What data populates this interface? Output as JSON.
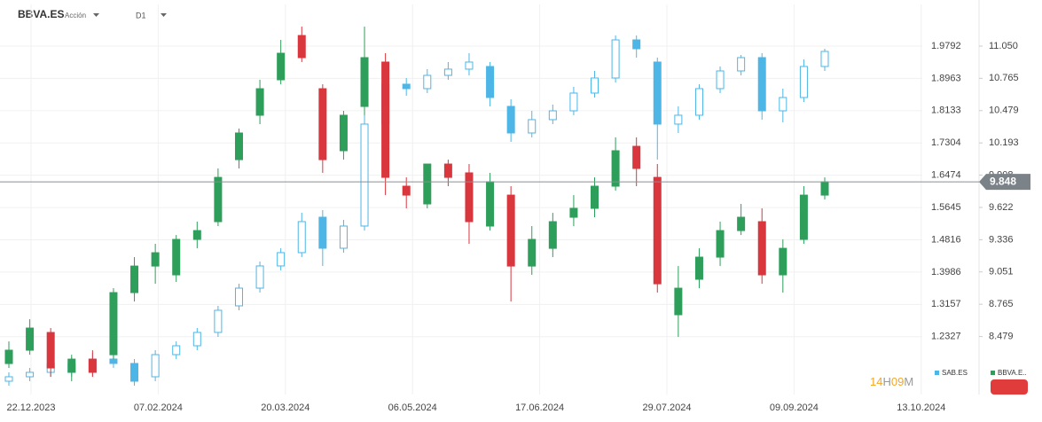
{
  "header": {
    "symbol": "BBVA.ES",
    "instrument_type": "Acción",
    "timeframe": "D1"
  },
  "timer": {
    "hours": "14",
    "hours_unit": "H",
    "minutes": "09",
    "minutes_unit": "M"
  },
  "chart_data": {
    "type": "candlestick",
    "x_axis_labels": [
      "22.12.2023",
      "07.02.2024",
      "20.03.2024",
      "06.05.2024",
      "17.06.2024",
      "29.07.2024",
      "09.09.2024",
      "13.10.2024"
    ],
    "ylim": [
      1.0955,
      2.0862
    ],
    "yticks": [
      1.9792,
      1.8963,
      1.8133,
      1.7304,
      1.6474,
      1.5645,
      1.4816,
      1.3986,
      1.3157,
      1.2327
    ],
    "y2lim": [
      8.005,
      11.419
    ],
    "y2ticks": [
      {
        "value": 11.05,
        "label": "11.050"
      },
      10.765,
      10.479,
      10.193,
      {
        "value": 9.908,
        "label": "9.908"
      },
      9.622,
      9.336,
      9.051,
      8.765,
      8.479
    ],
    "last_price": 9.848,
    "series": [
      {
        "name": "SAB.ES",
        "axis": "y",
        "color": "#4db6e6",
        "up_color": "#4db6e6",
        "down_color": "#4db6e6",
        "open": [
          1.1183,
          1.1297,
          1.1411,
          1.1639,
          1.1411,
          1.1752,
          1.1639,
          1.1297,
          1.1866,
          1.2094,
          1.2436,
          1.3119,
          1.3574,
          1.4144,
          1.4486,
          1.5396,
          1.4599,
          1.5169,
          1.7788,
          1.8813,
          1.8699,
          1.904,
          1.92,
          1.9268,
          1.8243,
          1.756,
          1.7902,
          1.8129,
          1.8585,
          1.8972,
          1.9951,
          1.9382,
          1.7788,
          1.8016,
          1.8699,
          1.9154,
          1.9496,
          1.8129,
          1.8471,
          1.9268
        ],
        "high": [
          1.1411,
          1.1525,
          1.1752,
          1.1798,
          1.1912,
          1.1912,
          1.1752,
          1.198,
          1.2208,
          1.255,
          1.3119,
          1.3688,
          1.4258,
          1.4599,
          1.551,
          1.5579,
          1.5328,
          1.8016,
          1.8972,
          1.8972,
          1.92,
          1.9382,
          1.961,
          1.9382,
          1.8425,
          1.8129,
          1.8289,
          1.8744,
          1.9154,
          2.0065,
          2.0065,
          1.9496,
          1.8243,
          1.8813,
          1.9268,
          1.9564,
          1.961,
          1.8699,
          1.945,
          1.9724
        ],
        "low": [
          1.1069,
          1.1183,
          1.1297,
          1.1297,
          1.1297,
          1.1525,
          1.1069,
          1.1183,
          1.1752,
          1.198,
          1.2322,
          1.3005,
          1.3461,
          1.403,
          1.4372,
          1.4144,
          1.4486,
          1.5055,
          1.7674,
          1.8517,
          1.8585,
          1.8927,
          1.904,
          1.8243,
          1.7332,
          1.7446,
          1.7788,
          1.8016,
          1.8471,
          1.8858,
          1.9496,
          1.6877,
          1.756,
          1.7902,
          1.8585,
          1.904,
          1.7902,
          1.7833,
          1.8357,
          1.9154
        ],
        "close": [
          1.1297,
          1.1411,
          1.1639,
          1.1411,
          1.1752,
          1.1639,
          1.1183,
          1.1866,
          1.2094,
          1.2436,
          1.3005,
          1.3574,
          1.4144,
          1.4486,
          1.5283,
          1.4599,
          1.5169,
          1.7788,
          1.8813,
          1.8699,
          1.904,
          1.92,
          1.9382,
          1.8471,
          1.756,
          1.7902,
          1.8129,
          1.8585,
          1.8972,
          1.9951,
          1.9724,
          1.7788,
          1.8016,
          1.8699,
          1.9154,
          1.9496,
          1.8129,
          1.8471,
          1.9268,
          1.9655
        ]
      },
      {
        "name": "BBVA.E..",
        "axis": "y2",
        "color": "#2e9e5b",
        "up_color": "#2e9e5b",
        "down_color": "#d9363e",
        "open": [
          8.24,
          8.358,
          8.515,
          8.162,
          8.279,
          8.318,
          8.868,
          9.103,
          9.025,
          9.339,
          9.496,
          10.045,
          10.438,
          10.752,
          11.144,
          10.673,
          10.124,
          10.516,
          10.909,
          9.81,
          9.653,
          10.006,
          9.928,
          9.457,
          9.731,
          9.103,
          9.26,
          9.535,
          9.614,
          9.81,
          10.163,
          9.888,
          8.672,
          8.986,
          9.182,
          9.417,
          9.496,
          9.025,
          9.339,
          9.731
        ],
        "high": [
          8.436,
          8.632,
          8.554,
          8.318,
          8.358,
          8.907,
          9.182,
          9.3,
          9.378,
          9.496,
          9.967,
          10.32,
          10.752,
          11.105,
          11.223,
          10.712,
          10.477,
          11.223,
          10.987,
          9.888,
          10.006,
          10.045,
          10.006,
          9.928,
          9.81,
          9.457,
          9.574,
          9.731,
          9.888,
          10.242,
          10.242,
          10.006,
          9.103,
          9.26,
          9.496,
          9.653,
          9.614,
          9.339,
          9.81,
          9.888
        ],
        "low": [
          8.201,
          8.318,
          8.122,
          8.083,
          8.122,
          8.279,
          8.789,
          8.946,
          8.962,
          9.26,
          9.457,
          9.967,
          10.359,
          10.712,
          10.909,
          9.928,
          10.045,
          10.438,
          9.731,
          9.614,
          9.614,
          9.81,
          9.3,
          9.417,
          8.789,
          9.025,
          9.182,
          9.457,
          9.535,
          9.771,
          9.81,
          8.868,
          8.475,
          8.907,
          9.103,
          9.378,
          8.946,
          8.868,
          9.3,
          9.692
        ],
        "close": [
          8.358,
          8.554,
          8.201,
          8.279,
          8.162,
          8.868,
          9.103,
          9.221,
          9.339,
          9.417,
          9.888,
          10.281,
          10.673,
          10.987,
          10.948,
          10.045,
          10.438,
          10.948,
          9.888,
          9.731,
          10.006,
          9.888,
          9.496,
          9.849,
          9.103,
          9.339,
          9.496,
          9.614,
          9.81,
          10.124,
          9.967,
          8.946,
          8.907,
          9.182,
          9.417,
          9.535,
          9.025,
          9.26,
          9.731,
          9.849
        ]
      }
    ]
  }
}
